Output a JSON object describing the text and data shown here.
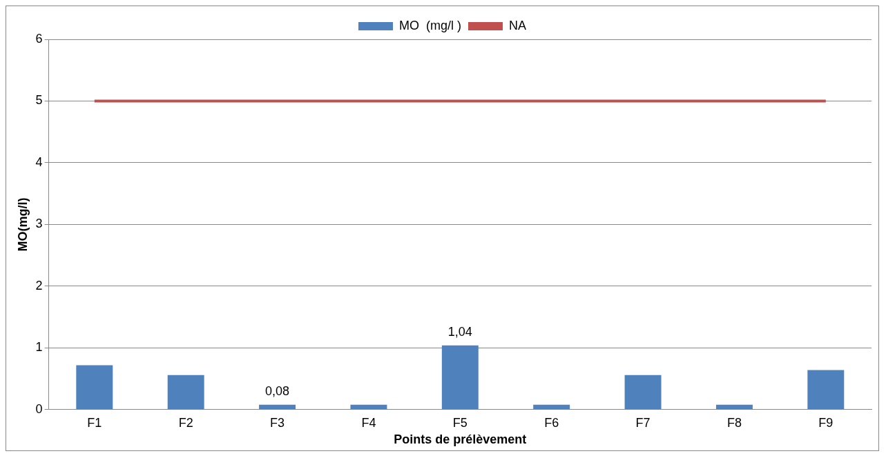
{
  "chart_data": {
    "type": "bar",
    "xlabel": "Points de prélèvement",
    "ylabel": "MO(mg/l)",
    "categories": [
      "F1",
      "F2",
      "F3",
      "F4",
      "F5",
      "F6",
      "F7",
      "F8",
      "F9"
    ],
    "series": [
      {
        "name": "MO  (mg/l )",
        "color": "#4f81bd",
        "values": [
          0.72,
          0.56,
          0.08,
          0.08,
          1.04,
          0.08,
          0.56,
          0.08,
          0.64
        ],
        "value_labels": [
          null,
          null,
          "0,08",
          null,
          "1,04",
          null,
          null,
          null,
          null
        ]
      },
      {
        "name": "NA",
        "type": "line",
        "color": "#c0504d",
        "values": [
          5,
          5,
          5,
          5,
          5,
          5,
          5,
          5,
          5
        ]
      }
    ],
    "ylim": [
      0,
      6
    ],
    "yticks": [
      0,
      1,
      2,
      3,
      4,
      5,
      6
    ],
    "grid": "y",
    "legend": "top",
    "marker": "none"
  }
}
